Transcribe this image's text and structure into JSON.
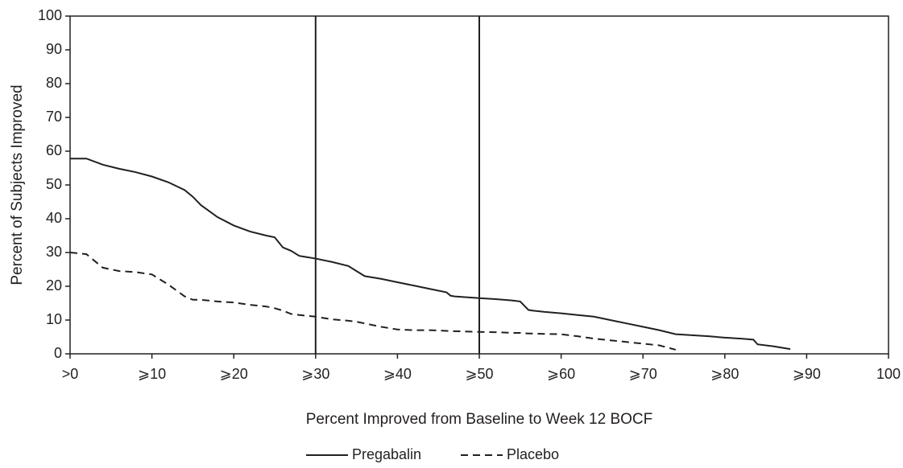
{
  "chart_data": {
    "type": "line",
    "xlabel": "Percent Improved from Baseline to Week 12 BOCF",
    "ylabel": "Percent of Subjects Improved",
    "x": [
      0,
      2,
      4,
      6,
      8,
      10,
      12,
      14,
      15,
      16,
      18,
      20,
      22,
      24,
      25,
      26,
      27,
      28,
      30,
      32,
      34,
      35,
      36,
      38,
      40,
      42,
      44,
      46,
      46.5,
      47,
      50,
      52,
      54,
      55,
      56,
      56.5,
      58,
      60,
      62,
      64,
      66,
      68,
      70,
      72,
      74,
      76,
      78,
      80,
      82,
      83.5,
      84,
      86,
      88
    ],
    "series": [
      {
        "name": "Pregabalin",
        "color": "#231f20",
        "dash": "solid",
        "values": [
          57.8,
          57.8,
          56,
          54.8,
          53.8,
          52.5,
          50.8,
          48.5,
          46.5,
          44,
          40.5,
          38,
          36.2,
          35,
          34.5,
          31.5,
          30.5,
          29,
          28.2,
          27.2,
          26,
          24.5,
          23,
          22.2,
          21.2,
          20.2,
          19.2,
          18.2,
          17.2,
          17,
          16.5,
          16.2,
          15.8,
          15.5,
          13,
          12.8,
          12.4,
          12,
          11.5,
          11,
          10,
          9,
          8,
          7,
          5.8,
          5.5,
          5.2,
          4.8,
          4.5,
          4.2,
          2.8,
          2.2,
          1.4
        ]
      },
      {
        "name": "Placebo",
        "color": "#231f20",
        "dash": "dashed",
        "values": [
          30,
          29.5,
          25.5,
          24.5,
          24.2,
          23.5,
          20.5,
          17,
          16,
          16,
          15.5,
          15.2,
          14.5,
          14,
          13.5,
          12.8,
          11.8,
          11.5,
          11,
          10.2,
          9.8,
          9.5,
          9,
          8,
          7.2,
          7,
          7,
          6.8,
          6.7,
          6.7,
          6.5,
          6.4,
          6.2,
          6.2,
          6,
          6,
          5.9,
          5.8,
          5.2,
          4.5,
          4,
          3.5,
          3,
          2.5,
          1.2,
          null,
          null,
          null,
          null,
          null,
          null,
          null,
          null
        ]
      }
    ],
    "xlim": [
      0,
      100
    ],
    "xticks": [
      {
        "value": 0,
        "label": ">0"
      },
      {
        "value": 10,
        "label": "⩾10"
      },
      {
        "value": 20,
        "label": "⩾20"
      },
      {
        "value": 30,
        "label": "⩾30"
      },
      {
        "value": 40,
        "label": "⩾40"
      },
      {
        "value": 50,
        "label": "⩾50"
      },
      {
        "value": 60,
        "label": "⩾60"
      },
      {
        "value": 70,
        "label": "⩾70"
      },
      {
        "value": 80,
        "label": "⩾80"
      },
      {
        "value": 90,
        "label": "⩾90"
      },
      100
    ],
    "ylim": [
      0,
      100
    ],
    "yticks": [
      0,
      10,
      20,
      30,
      40,
      50,
      60,
      70,
      80,
      90,
      100
    ],
    "vlines": [
      30,
      50
    ],
    "legend": "bottom"
  }
}
